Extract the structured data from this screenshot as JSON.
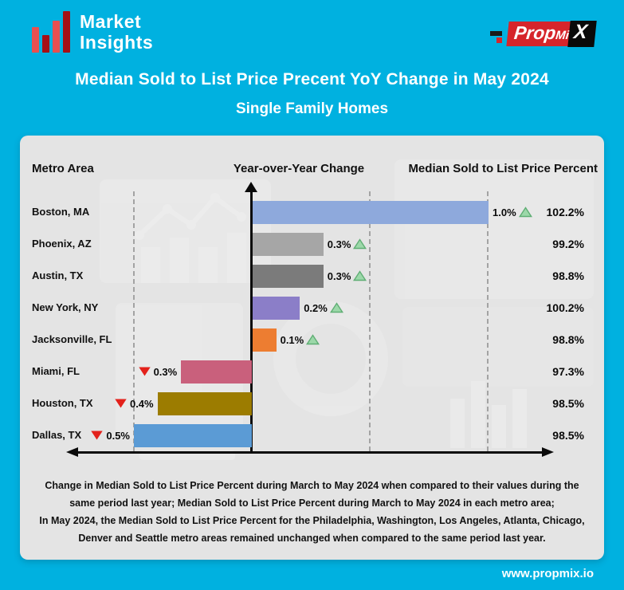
{
  "header": {
    "logo_line1": "Market",
    "logo_line2": "Insights",
    "propmix_part1": "Prop",
    "propmix_part2": "Mi",
    "propmix_part3": "X",
    "title": "Median Sold to List Price Precent YoY Change in May 2024",
    "subtitle": "Single Family Homes"
  },
  "table_headers": {
    "metro": "Metro Area",
    "change": "Year-over-Year Change",
    "median": "Median Sold to List Price Percent"
  },
  "footnote": {
    "sentence1": "Change in Median Sold to List Price Percent during March to May 2024 when compared to their values during the same period last year; Median Sold to List Price Percent during March to May 2024 in each metro area;",
    "sentence2": "In May 2024, the Median Sold to List Price Percent for the Philadelphia, Washington, Los Angeles, Atlanta, Chicago, Denver and Seattle metro areas remained unchanged when compared to the same period last year."
  },
  "footer": {
    "website": "www.propmix.io"
  },
  "chart_data": {
    "type": "bar",
    "orientation": "horizontal-diverging",
    "title": "Median Sold to List Price Precent YoY Change in May 2024",
    "subtitle": "Single Family Homes",
    "x_axis": {
      "unit": "%",
      "gridlines_percent": [
        -0.5,
        0.5,
        1.0
      ],
      "range": [
        -0.6,
        1.25
      ]
    },
    "columns": [
      "Metro Area",
      "Year-over-Year Change",
      "Median Sold to List Price Percent"
    ],
    "rows": [
      {
        "metro": "Boston, MA",
        "yoy_change": 1.0,
        "change_label": "1.0%",
        "direction": "up",
        "median": 102.2,
        "median_label": "102.2%",
        "bar_color": "#8ea9dc"
      },
      {
        "metro": "Phoenix, AZ",
        "yoy_change": 0.3,
        "change_label": "0.3%",
        "direction": "up",
        "median": 99.2,
        "median_label": "99.2%",
        "bar_color": "#a6a6a6"
      },
      {
        "metro": "Austin, TX",
        "yoy_change": 0.3,
        "change_label": "0.3%",
        "direction": "up",
        "median": 98.8,
        "median_label": "98.8%",
        "bar_color": "#7b7b7b"
      },
      {
        "metro": "New York, NY",
        "yoy_change": 0.2,
        "change_label": "0.2%",
        "direction": "up",
        "median": 100.2,
        "median_label": "100.2%",
        "bar_color": "#8b7ec8"
      },
      {
        "metro": "Jacksonville, FL",
        "yoy_change": 0.1,
        "change_label": "0.1%",
        "direction": "up",
        "median": 98.8,
        "median_label": "98.8%",
        "bar_color": "#ed7d31"
      },
      {
        "metro": "Miami, FL",
        "yoy_change": -0.3,
        "change_label": "0.3%",
        "direction": "down",
        "median": 97.3,
        "median_label": "97.3%",
        "bar_color": "#c9607c"
      },
      {
        "metro": "Houston, TX",
        "yoy_change": -0.4,
        "change_label": "0.4%",
        "direction": "down",
        "median": 98.5,
        "median_label": "98.5%",
        "bar_color": "#9c7c00"
      },
      {
        "metro": "Dallas, TX",
        "yoy_change": -0.5,
        "change_label": "0.5%",
        "direction": "down",
        "median": 98.5,
        "median_label": "98.5%",
        "bar_color": "#5b9bd5"
      }
    ],
    "colors": {
      "up_triangle_fill": "#9cd8a9",
      "up_triangle_border": "#5fae74",
      "down_triangle": "#e3211b",
      "axis": "#0a0a0a",
      "background_cyan": "#00b1e0",
      "card_background": "#e4e4e4"
    }
  }
}
